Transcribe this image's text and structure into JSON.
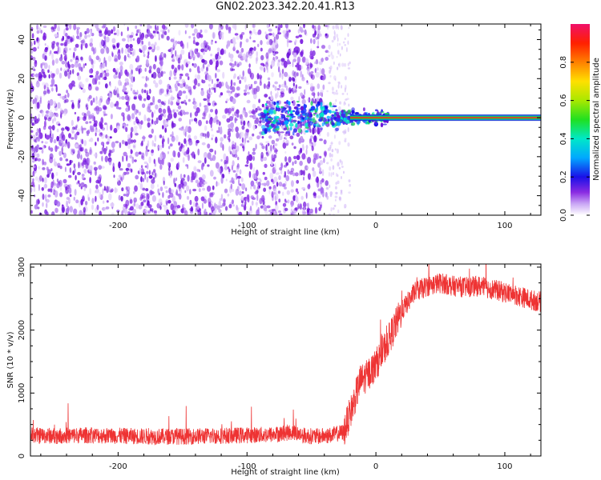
{
  "title": "GN02.2023.342.20.41.R13",
  "chart_data": [
    {
      "type": "heatmap",
      "xlabel": "Height of straight line (km)",
      "ylabel": "Frequency (Hz)",
      "xlim": [
        -268,
        128
      ],
      "ylim": [
        -50,
        48
      ],
      "xticks": [
        -200,
        -100,
        0,
        100
      ],
      "yticks": [
        -40,
        -20,
        0,
        20,
        40
      ],
      "colorbar": {
        "label": "Normalized spectral amplitude",
        "ticks": [
          0.0,
          0.2,
          0.4,
          0.6,
          0.8
        ],
        "range": [
          0,
          1
        ]
      },
      "features": [
        {
          "name": "scattered_noise",
          "x_range": [
            -268,
            -38
          ],
          "level": 0.1
        },
        {
          "name": "noise_fade",
          "x_range": [
            -38,
            -20
          ],
          "level": 0.05
        },
        {
          "name": "signal_cluster",
          "x_range": [
            -90,
            10
          ],
          "y_center": 0,
          "level": 0.25
        },
        {
          "name": "tone_line",
          "x_range": [
            -20,
            128
          ],
          "y_center": 0,
          "level": 0.9
        }
      ],
      "colors": {
        "noise": "#7b1fe0",
        "tone_center": "#f03030",
        "tone_edge": "#20d020",
        "tone_outer": "#1030d0"
      }
    },
    {
      "type": "line",
      "xlabel": "Height of straight line (km)",
      "ylabel": "SNR (10 * v/v)",
      "xlim": [
        -268,
        128
      ],
      "ylim": [
        0,
        3050
      ],
      "xticks": [
        -200,
        -100,
        0,
        100
      ],
      "yticks": [
        0,
        1000,
        2000,
        3000
      ],
      "series": [
        {
          "color": "#ee3333",
          "x": [
            -268,
            -250,
            -225,
            -200,
            -175,
            -150,
            -125,
            -100,
            -80,
            -65,
            -55,
            -45,
            -35,
            -25,
            -18,
            -12,
            -8,
            0,
            10,
            20,
            30,
            40,
            50,
            60,
            70,
            80,
            90,
            100,
            110,
            120,
            128
          ],
          "y": [
            330,
            320,
            330,
            320,
            310,
            310,
            320,
            330,
            340,
            380,
            320,
            310,
            330,
            380,
            800,
            1200,
            1250,
            1450,
            1850,
            2300,
            2600,
            2700,
            2750,
            2700,
            2680,
            2700,
            2650,
            2600,
            2550,
            2480,
            2450
          ]
        }
      ]
    }
  ]
}
